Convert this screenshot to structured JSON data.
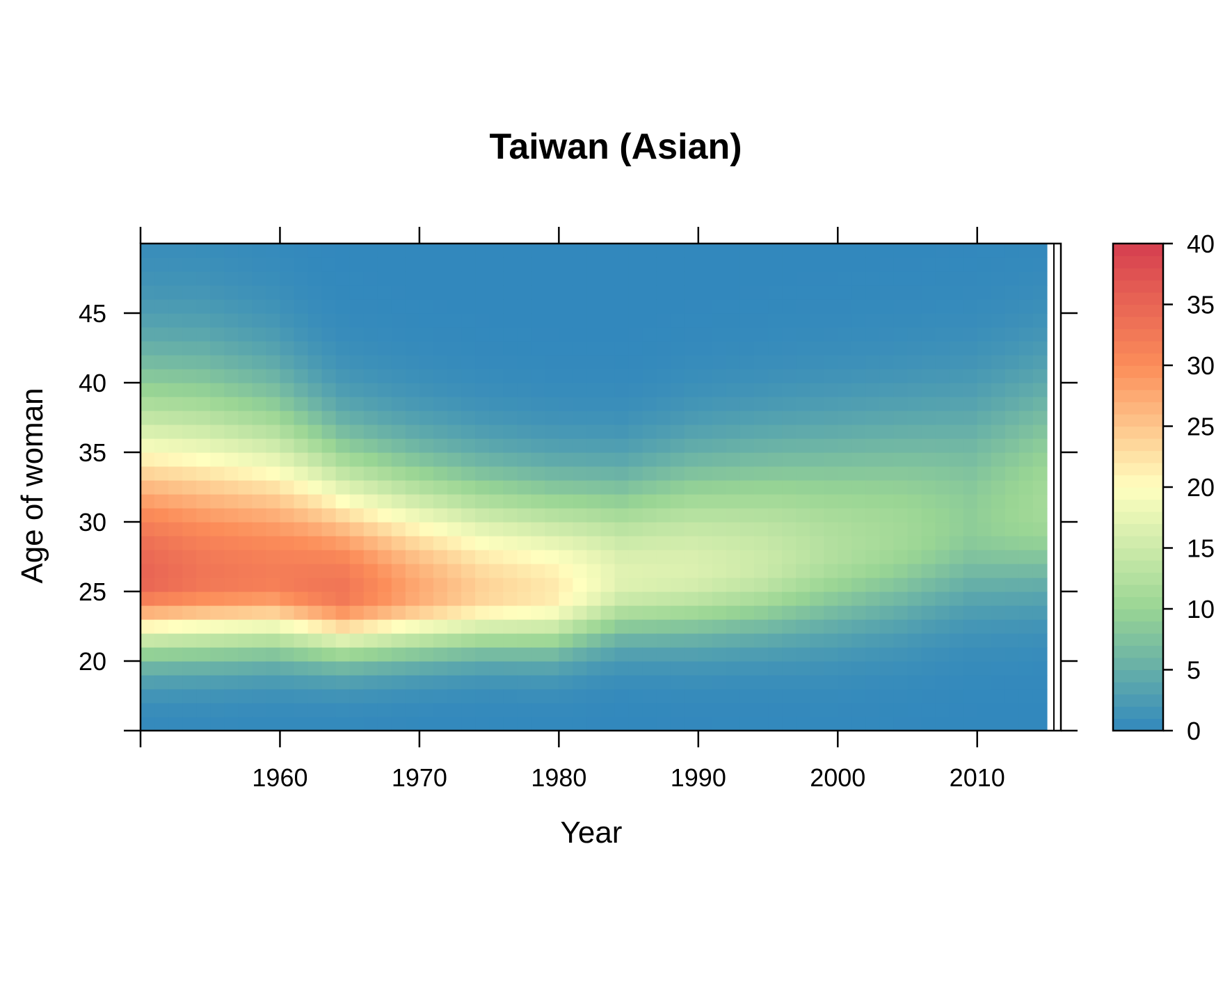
{
  "chart_data": {
    "type": "heatmap",
    "title": "Taiwan (Asian)",
    "xlabel": "Year",
    "ylabel": "Age of woman",
    "xlim": [
      1950,
      2016
    ],
    "ylim": [
      15,
      50
    ],
    "x_ticks": [
      1960,
      1970,
      1980,
      1990,
      2000,
      2010
    ],
    "y_ticks": [
      20,
      25,
      30,
      35,
      40,
      45
    ],
    "x_tick_labels": [
      "1960",
      "1970",
      "1980",
      "1990",
      "2000",
      "2010"
    ],
    "y_tick_labels": [
      "20",
      "25",
      "30",
      "35",
      "40",
      "45"
    ],
    "colorbar": {
      "range": [
        0,
        40
      ],
      "ticks": [
        "0",
        "5",
        "10",
        "15",
        "20",
        "25",
        "30",
        "35",
        "40"
      ],
      "position": "right"
    },
    "colors": {
      "low": "#3288bd",
      "mid_low": "#99d594",
      "mid": "#ffffbf",
      "mid_high": "#fc8d59",
      "high": "#d53e4f"
    },
    "year_profiles": [
      {
        "year": 1951,
        "peak_age": 26,
        "peak_value": 35,
        "sigma_low": 3.4,
        "sigma_high": 8.5
      },
      {
        "year": 1955,
        "peak_age": 26,
        "peak_value": 33,
        "sigma_low": 3.4,
        "sigma_high": 8.5
      },
      {
        "year": 1960,
        "peak_age": 26,
        "peak_value": 32,
        "sigma_low": 3.3,
        "sigma_high": 7.8
      },
      {
        "year": 1965,
        "peak_age": 25,
        "peak_value": 33,
        "sigma_low": 3.0,
        "sigma_high": 6.5
      },
      {
        "year": 1970,
        "peak_age": 25,
        "peak_value": 28,
        "sigma_low": 2.9,
        "sigma_high": 6.0
      },
      {
        "year": 1975,
        "peak_age": 25,
        "peak_value": 24,
        "sigma_low": 2.8,
        "sigma_high": 5.6
      },
      {
        "year": 1980,
        "peak_age": 25,
        "peak_value": 22,
        "sigma_low": 2.9,
        "sigma_high": 5.3
      },
      {
        "year": 1985,
        "peak_age": 26,
        "peak_value": 17,
        "sigma_low": 3.0,
        "sigma_high": 5.0
      },
      {
        "year": 1990,
        "peak_age": 26.5,
        "peak_value": 16.5,
        "sigma_low": 3.3,
        "sigma_high": 5.6
      },
      {
        "year": 1995,
        "peak_age": 27,
        "peak_value": 15,
        "sigma_low": 3.5,
        "sigma_high": 5.9
      },
      {
        "year": 2000,
        "peak_age": 28,
        "peak_value": 12.5,
        "sigma_low": 4.0,
        "sigma_high": 6.0
      },
      {
        "year": 2005,
        "peak_age": 29,
        "peak_value": 11,
        "sigma_low": 4.2,
        "sigma_high": 6.0
      },
      {
        "year": 2010,
        "peak_age": 30,
        "peak_value": 9,
        "sigma_low": 4.2,
        "sigma_high": 6.2
      },
      {
        "year": 2015,
        "peak_age": 31,
        "peak_value": 11,
        "sigma_low": 4.3,
        "sigma_high": 6.5
      }
    ]
  }
}
